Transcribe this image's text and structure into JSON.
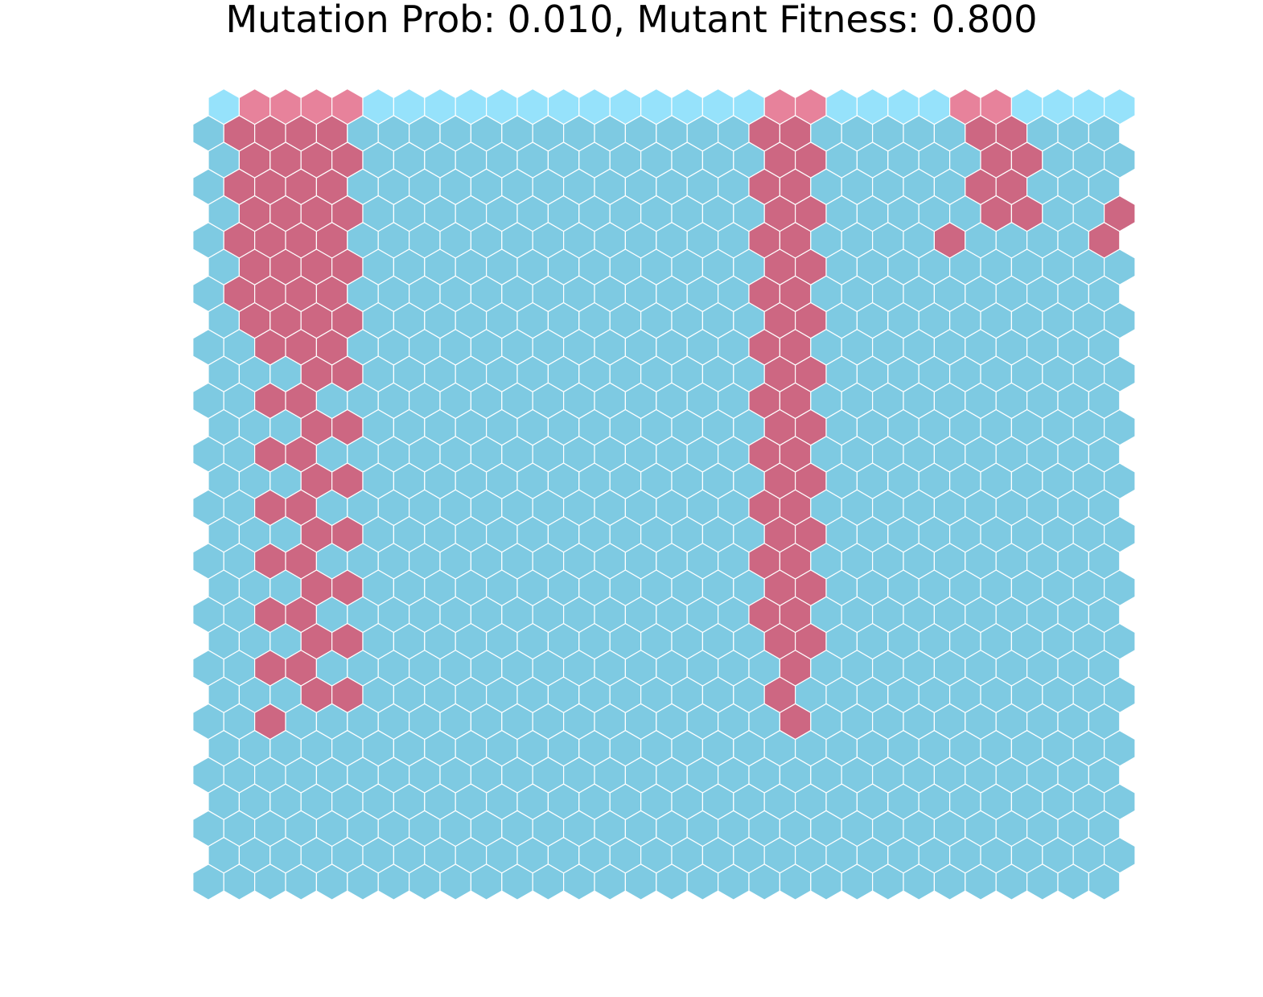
{
  "title": "Mutation Prob: 0.010, Mutant Fitness: 0.800",
  "chart_data": {
    "type": "heatmap",
    "title": "Mutation Prob: 0.010, Mutant Fitness: 0.800",
    "layout": "hexagonal lattice, 30 columns x 30 rows, odd (from top) rows shifted right by half a cell",
    "grid": false,
    "axes": false,
    "colors": {
      "wild_type": "#7ecae2",
      "mutant": "#cd6782",
      "wild_type_newest_row": "#96e2fb",
      "mutant_newest_row": "#e7829b"
    },
    "legend": {
      "0": "wild type",
      "1": "mutant"
    },
    "rows_top_to_bottom": [
      "011110000000000000110000110000",
      "011110000000000000110000011000",
      "011110000000000000110000011000",
      "011110000000000000110000011000",
      "011110000000000000110000011001",
      "011110000000000000110000100001",
      "011110000000000000110000000000",
      "011110000000000000110000000000",
      "011110000000000000110000000000",
      "001110000000000000110000000000",
      "000110000000000000110000000000",
      "001100000000000000110000000000",
      "000110000000000000110000000000",
      "001100000000000000110000000000",
      "000110000000000000110000000000",
      "001100000000000000110000000000",
      "000110000000000000110000000000",
      "001100000000000000110000000000",
      "000110000000000000110000000000",
      "001100000000000000110000000000",
      "000110000000000000110000000000",
      "001100000000000000010000000000",
      "000110000000000000100000000000",
      "001000000000000000010000000000",
      "000000000000000000000000000000",
      "000000000000000000000000000000",
      "000000000000000000000000000000",
      "000000000000000000000000000000",
      "000000000000000000000000000000",
      "000000000000000000000000000000"
    ]
  }
}
